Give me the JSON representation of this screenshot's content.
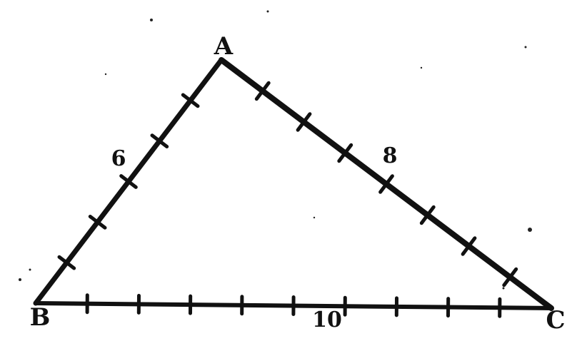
{
  "diagram": {
    "vertices": {
      "A": {
        "label": "A"
      },
      "B": {
        "label": "B"
      },
      "C": {
        "label": "C"
      }
    },
    "sides": {
      "AB": {
        "label": "6",
        "divisions": 6
      },
      "AC": {
        "label": "8",
        "divisions": 8
      },
      "BC": {
        "label": "10",
        "divisions": 10
      }
    },
    "colors": {
      "ink": "#111111",
      "background": "#ffffff"
    }
  }
}
